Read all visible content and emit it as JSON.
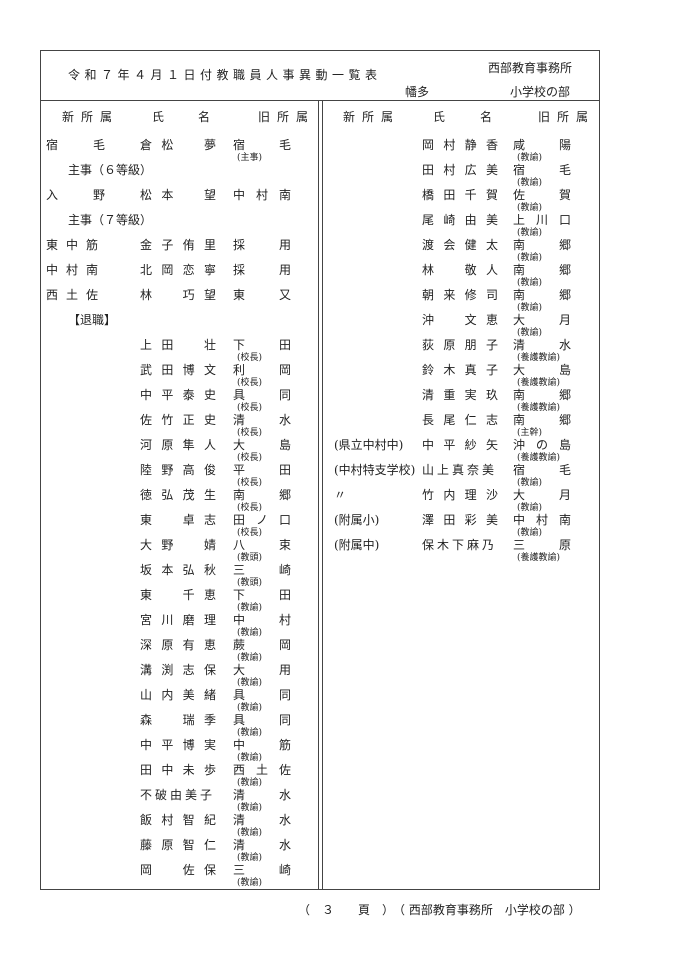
{
  "header": {
    "title": "令和７年４月１日付教職員人事異動一覧表",
    "office": "西部教育事務所",
    "region": "幡多",
    "section": "小学校の部"
  },
  "columns": {
    "new": "新所属",
    "name_1": "氏",
    "name_2": "名",
    "old": "旧所属"
  },
  "left_rows": [
    {
      "new": "宿毛",
      "name": "倉松　夢",
      "old": "宿毛",
      "role": "(主事)"
    },
    {
      "label": "主事（６等級）"
    },
    {
      "new": "入野",
      "name": "松本　望",
      "old": "中村南",
      "role": ""
    },
    {
      "label": "主事（７等級）"
    },
    {
      "new": "東中筋",
      "name": "金子侑里",
      "old": "採用",
      "role": ""
    },
    {
      "new": "中村南",
      "name": "北岡恋寧",
      "old": "採用",
      "role": ""
    },
    {
      "new": "西土佐",
      "name": "林　巧望",
      "old": "東又",
      "role": ""
    },
    {
      "label": "【退職】"
    },
    {
      "new": "",
      "name": "上田　壮",
      "old": "下田",
      "role": "(校長)"
    },
    {
      "new": "",
      "name": "武田博文",
      "old": "利岡",
      "role": "(校長)"
    },
    {
      "new": "",
      "name": "中平泰史",
      "old": "具同",
      "role": "(校長)"
    },
    {
      "new": "",
      "name": "佐竹正史",
      "old": "清水",
      "role": "(校長)"
    },
    {
      "new": "",
      "name": "河原隼人",
      "old": "大島",
      "role": "(校長)"
    },
    {
      "new": "",
      "name": "陸野高俊",
      "old": "平田",
      "role": "(校長)"
    },
    {
      "new": "",
      "name": "徳弘茂生",
      "old": "南郷",
      "role": "(校長)"
    },
    {
      "new": "",
      "name": "東　卓志",
      "old": "田ノ口",
      "role": "(校長)"
    },
    {
      "new": "",
      "name": "大野　婧",
      "old": "八束",
      "role": "(教頭)"
    },
    {
      "new": "",
      "name": "坂本弘秋",
      "old": "三崎",
      "role": "(教頭)"
    },
    {
      "new": "",
      "name": "東　千恵",
      "old": "下田",
      "role": "(教諭)"
    },
    {
      "new": "",
      "name": "宮川磨理",
      "old": "中村",
      "role": "(教諭)"
    },
    {
      "new": "",
      "name": "深原有恵",
      "old": "蕨岡",
      "role": "(教諭)"
    },
    {
      "new": "",
      "name": "溝渕志保",
      "old": "大用",
      "role": "(教諭)"
    },
    {
      "new": "",
      "name": "山内美緒",
      "old": "具同",
      "role": "(教諭)"
    },
    {
      "new": "",
      "name": "森　瑞季",
      "old": "具同",
      "role": "(教諭)"
    },
    {
      "new": "",
      "name": "中平博実",
      "old": "中筋",
      "role": "(教諭)"
    },
    {
      "new": "",
      "name": "田中未歩",
      "old": "西土佐",
      "role": "(教諭)"
    },
    {
      "new": "",
      "name": "不破由美子",
      "old": "清水",
      "role": "(教諭)"
    },
    {
      "new": "",
      "name": "飯村智紀",
      "old": "清水",
      "role": "(教諭)"
    },
    {
      "new": "",
      "name": "藤原智仁",
      "old": "清水",
      "role": "(教諭)"
    },
    {
      "new": "",
      "name": "岡　佐保",
      "old": "三崎",
      "role": "(教諭)"
    }
  ],
  "right_rows": [
    {
      "new": "",
      "name": "岡村静香",
      "old": "咸陽",
      "role": "(教諭)"
    },
    {
      "new": "",
      "name": "田村広美",
      "old": "宿毛",
      "role": "(教諭)"
    },
    {
      "new": "",
      "name": "橋田千賀",
      "old": "佐賀",
      "role": "(教諭)"
    },
    {
      "new": "",
      "name": "尾崎由美",
      "old": "上川口",
      "role": "(教諭)"
    },
    {
      "new": "",
      "name": "渡会健太",
      "old": "南郷",
      "role": "(教諭)"
    },
    {
      "new": "",
      "name": "林　敬人",
      "old": "南郷",
      "role": "(教諭)"
    },
    {
      "new": "",
      "name": "朝来修司",
      "old": "南郷",
      "role": "(教諭)"
    },
    {
      "new": "",
      "name": "沖　文恵",
      "old": "大月",
      "role": "(教諭)"
    },
    {
      "new": "",
      "name": "荻原朋子",
      "old": "清水",
      "role": "(養護教諭)"
    },
    {
      "new": "",
      "name": "鈴木真子",
      "old": "大島",
      "role": "(養護教諭)"
    },
    {
      "new": "",
      "name": "清重実玖",
      "old": "南郷",
      "role": "(養護教諭)"
    },
    {
      "new": "",
      "name": "長尾仁志",
      "old": "南郷",
      "role": "(主幹)"
    },
    {
      "new": "(県立中村中)",
      "name": "中平紗矢",
      "old": "沖の島",
      "role": "(養護教諭)"
    },
    {
      "new": "(中村特支学校)",
      "name": "山上真奈美",
      "old": "宿毛",
      "role": "(教諭)"
    },
    {
      "new": "〃",
      "name": "竹内理沙",
      "old": "大月",
      "role": "(教諭)"
    },
    {
      "new": "(附属小)",
      "name": "澤田彩美",
      "old": "中村南",
      "role": "(教諭)"
    },
    {
      "new": "(附属中)",
      "name": "保木下麻乃",
      "old": "三原",
      "role": "(養護教諭)"
    }
  ],
  "footer": {
    "page": "（　３　　頁　）",
    "section": "（ 西部教育事務所　小学校の部 ）"
  }
}
